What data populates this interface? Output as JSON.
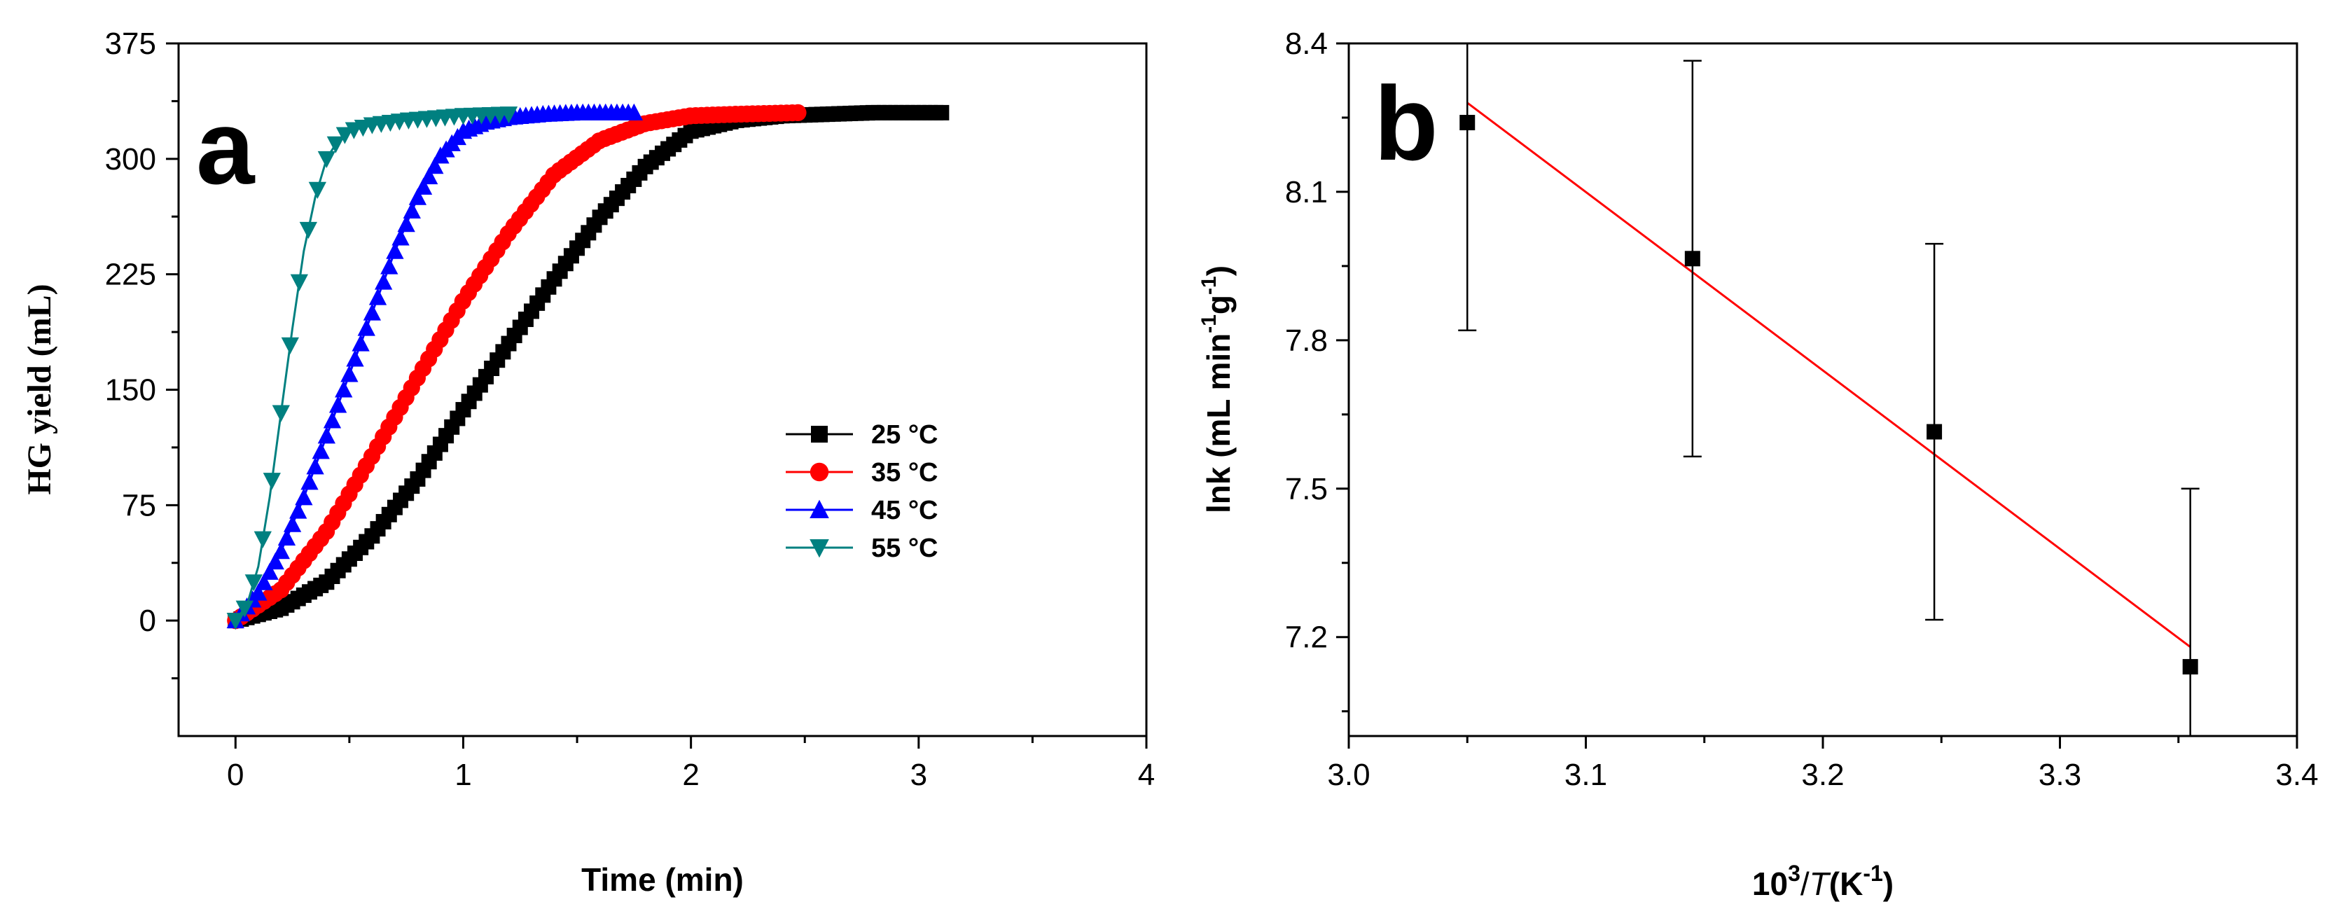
{
  "chart_data": [
    {
      "type": "line",
      "panel_label": "a",
      "xlabel": "Time (min)",
      "ylabel": "HG yield (mL)",
      "xlim": [
        -0.25,
        4
      ],
      "ylim": [
        -75,
        375
      ],
      "xticks": [
        0,
        1,
        2,
        3,
        4
      ],
      "yticks": [
        0,
        75,
        150,
        225,
        300,
        375
      ],
      "legend_position": "center-right",
      "series": [
        {
          "name": "25 °C",
          "color": "#000000",
          "marker": "square",
          "points": [
            [
              0,
              0
            ],
            [
              0.2,
              8
            ],
            [
              0.4,
              25
            ],
            [
              0.6,
              55
            ],
            [
              0.8,
              92
            ],
            [
              1.0,
              137
            ],
            [
              1.2,
              180
            ],
            [
              1.4,
              222
            ],
            [
              1.6,
              262
            ],
            [
              1.8,
              295
            ],
            [
              2.0,
              318
            ],
            [
              2.2,
              325
            ],
            [
              2.4,
              328
            ],
            [
              2.6,
              329
            ],
            [
              2.8,
              330
            ],
            [
              3.1,
              330
            ]
          ]
        },
        {
          "name": "35 °C",
          "color": "#ff0000",
          "marker": "circle",
          "points": [
            [
              0,
              0
            ],
            [
              0.2,
              20
            ],
            [
              0.4,
              58
            ],
            [
              0.6,
              107
            ],
            [
              0.8,
              158
            ],
            [
              1.0,
              208
            ],
            [
              1.2,
              252
            ],
            [
              1.4,
              290
            ],
            [
              1.6,
              312
            ],
            [
              1.8,
              323
            ],
            [
              2.0,
              328
            ],
            [
              2.2,
              329
            ],
            [
              2.47,
              330
            ]
          ]
        },
        {
          "name": "45 °C",
          "color": "#0000ff",
          "marker": "triangle-up",
          "points": [
            [
              0,
              0
            ],
            [
              0.1,
              18
            ],
            [
              0.2,
              45
            ],
            [
              0.3,
              80
            ],
            [
              0.4,
              120
            ],
            [
              0.5,
              160
            ],
            [
              0.6,
              200
            ],
            [
              0.7,
              240
            ],
            [
              0.8,
              275
            ],
            [
              0.9,
              302
            ],
            [
              1.0,
              318
            ],
            [
              1.1,
              324
            ],
            [
              1.2,
              327
            ],
            [
              1.35,
              329
            ],
            [
              1.5,
              330
            ],
            [
              1.75,
              330
            ]
          ]
        },
        {
          "name": "55 °C",
          "color": "#008080",
          "marker": "triangle-down",
          "points": [
            [
              0,
              0
            ],
            [
              0.05,
              10
            ],
            [
              0.1,
              35
            ],
            [
              0.15,
              80
            ],
            [
              0.2,
              135
            ],
            [
              0.25,
              190
            ],
            [
              0.3,
              240
            ],
            [
              0.35,
              275
            ],
            [
              0.4,
              300
            ],
            [
              0.45,
              312
            ],
            [
              0.5,
              318
            ],
            [
              0.6,
              322
            ],
            [
              0.75,
              325
            ],
            [
              1.0,
              328
            ],
            [
              1.2,
              329
            ]
          ]
        }
      ]
    },
    {
      "type": "scatter",
      "panel_label": "b",
      "xlabel_base": "10",
      "xlabel_sup": "3",
      "xlabel_slash": "/",
      "xlabel_var": "T",
      "xlabel_unit_open": "(K",
      "xlabel_unit_sup": "-1",
      "xlabel_unit_close": ")",
      "ylabel_main": "lnk (mL min",
      "ylabel_sup1": "-1",
      "ylabel_mid": "g",
      "ylabel_sup2": "-1",
      "ylabel_close": ")",
      "xlim": [
        3.0,
        3.4
      ],
      "ylim": [
        7.0,
        8.4
      ],
      "xticks": [
        3.0,
        3.1,
        3.2,
        3.3,
        3.4
      ],
      "yticks": [
        7.2,
        7.5,
        7.8,
        8.1,
        8.4
      ],
      "points": [
        {
          "x": 3.05,
          "y": 8.24,
          "err": 0.42
        },
        {
          "x": 3.145,
          "y": 7.965,
          "err": 0.4
        },
        {
          "x": 3.247,
          "y": 7.615,
          "err": 0.38
        },
        {
          "x": 3.355,
          "y": 7.14,
          "err": 0.36
        }
      ],
      "fit_line": {
        "color": "#ff0000",
        "x": [
          3.05,
          3.355
        ],
        "y": [
          8.28,
          7.18
        ]
      }
    }
  ]
}
